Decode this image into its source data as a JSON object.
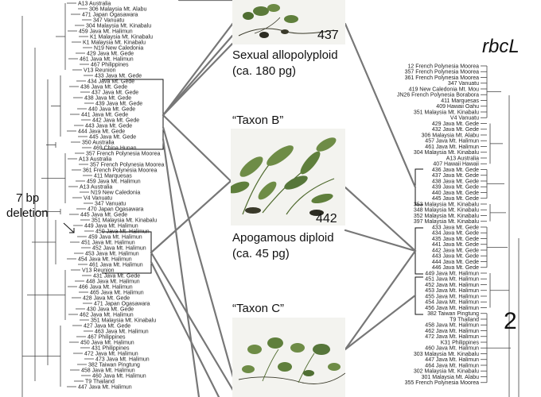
{
  "left_tree": {
    "leaves": [
      "A13 Australia",
      "306 Malaysia Mt. Alabu",
      "471 Japan Ogasawara",
      "347 Vanuatu",
      "304 Malaysia Mt. Kinabalu",
      "459 Java Mt. Halimun",
      "K1 Malaysia Mt. Kinabalu",
      "K1 Malaysia Mt. Kinabalu",
      "N19 New Caledonia",
      "429 Java Mt. Gede",
      "461 Java Mt. Halimun",
      "467 Philippines",
      "V13 Reunion",
      "433 Java Mt. Gede",
      "434 Java Mt. Gede",
      "436 Java Mt. Gede",
      "437 Java Mt. Gede",
      "438 Java Mt. Gede",
      "439 Java Mt. Gede",
      "440 Java Mt. Gede",
      "441 Java Mt. Gede",
      "442 Java Mt. Gede",
      "443 Java Mt. Gede",
      "444 Java Mt. Gede",
      "445 Java Mt. Gede",
      "350 Australia",
      "469 China Hunan",
      "357 French Polynesia Moorea",
      "A13 Australia",
      "357 French Polynesia Moorea",
      "361 French Polynesia Moorea",
      "411 Marquesas",
      "459 Java Mt. Halimun",
      "A13 Australia",
      "N19 New Caledonia",
      "V4 Vanuatu",
      "347 Vanuatu",
      "470 Japan Ogasawara",
      "445 Java Mt. Gede",
      "351 Malaysia Mt. Kinabalu",
      "449 Java Mt. Halimun",
      "450 Java Mt. Halimun",
      "459 Java Mt. Halimun",
      "451 Java Mt. Halimun",
      "452 Java Mt. Halimun",
      "453 Java Mt. Halimun",
      "454 Java Mt. Halimun",
      "461 Java Mt. Halimun",
      "V13 Reunion",
      "431 Java Mt. Gede",
      "448 Java Mt. Halimun",
      "466 Java Mt. Halimun",
      "465 Java Mt. Halimun",
      "428 Java Mt. Gede",
      "471 Japan Ogasawara",
      "430 Java Mt. Gede",
      "462 Java Mt. Halimun",
      "351 Malaysia Mt. Kinabalu",
      "427 Java Mt. Gede",
      "463 Java Mt. Halimun",
      "467 Philippines",
      "450 Java Mt. Halimun",
      "431 Philippines",
      "472 Java Mt. Halimun",
      "473 Java Mt. Halimun",
      "382 Taiwan Pingtung",
      "458 Java Mt. Halimun",
      "460 Java Mt. Halimun",
      "T9 Thailand",
      "447 Java Mt. Halimun"
    ]
  },
  "right_tree": {
    "leaves": [
      "12 French Polynesia Moorea",
      "357 French Polynesia Moorea",
      "361 French Polynesia Moorea",
      "347 Vanuatu",
      "419 New Caledonia Mt. Mou",
      "JN26 French Polynesia Borabora",
      "411 Marquesas",
      "409 Hawaii Oahu",
      "351 Malaysia Mt. Kinabalu",
      "V4 Vanuatu",
      "429 Java Mt. Gede",
      "432 Java Mt. Gede",
      "306 Malaysia Mt. Alabu",
      "457 Java Mt. Halimun",
      "461 Java Mt. Halimun",
      "304 Malaysia Mt. Kinabalu",
      "A13 Australia",
      "407 Hawaii Hawaii",
      "436 Java Mt. Gede",
      "437 Java Mt. Gede",
      "438 Java Mt. Gede",
      "439 Java Mt. Gede",
      "440 Java Mt. Gede",
      "445 Java Mt. Gede",
      "353 Malaysia Mt. Kinabalu",
      "348 Malaysia Mt. Kinabalu",
      "352 Malaysia Mt. Kinabalu",
      "397 Malaysia Mt. Kinabalu",
      "433 Java Mt. Gede",
      "434 Java Mt. Gede",
      "435 Java Mt. Gede",
      "441 Java Mt. Gede",
      "442 Java Mt. Gede",
      "443 Java Mt. Gede",
      "444 Java Mt. Gede",
      "446 Java Mt. Gede",
      "449 Java Mt. Halimun",
      "451 Java Mt. Halimun",
      "452 Java Mt. Halimun",
      "453 Java Mt. Halimun",
      "455 Java Mt. Halimun",
      "454 Java Mt. Halimun",
      "456 Java Mt. Halimun",
      "382 Taiwan Pingtung",
      "T9 Thailand",
      "458 Java Mt. Halimun",
      "462 Java Mt. Halimun",
      "472 Java Mt. Halimun",
      "K31 Philippines",
      "460 Java Mt. Halimun",
      "303 Malaysia Mt. Kinabalu",
      "447 Java Mt. Halimun",
      "464 Java Mt. Halimun",
      "302 Malaysia Mt. Kinabalu",
      "301 Malaysia Mt. Alabu",
      "355 French Polynesia Moorea"
    ]
  },
  "panels": [
    {
      "number": "437",
      "caption_lines": [
        "Sexual allopolyploid",
        "(ca. 180 pg)"
      ]
    },
    {
      "title": "“Taxon B”",
      "number": "442",
      "caption_lines": [
        "Apogamous diploid",
        "(ca. 45 pg)"
      ]
    },
    {
      "title": "“Taxon C”"
    }
  ],
  "annotations": {
    "deletion_lines": [
      "7 bp",
      "deletion"
    ],
    "gene_label": "rbcL",
    "number_label": "2"
  }
}
